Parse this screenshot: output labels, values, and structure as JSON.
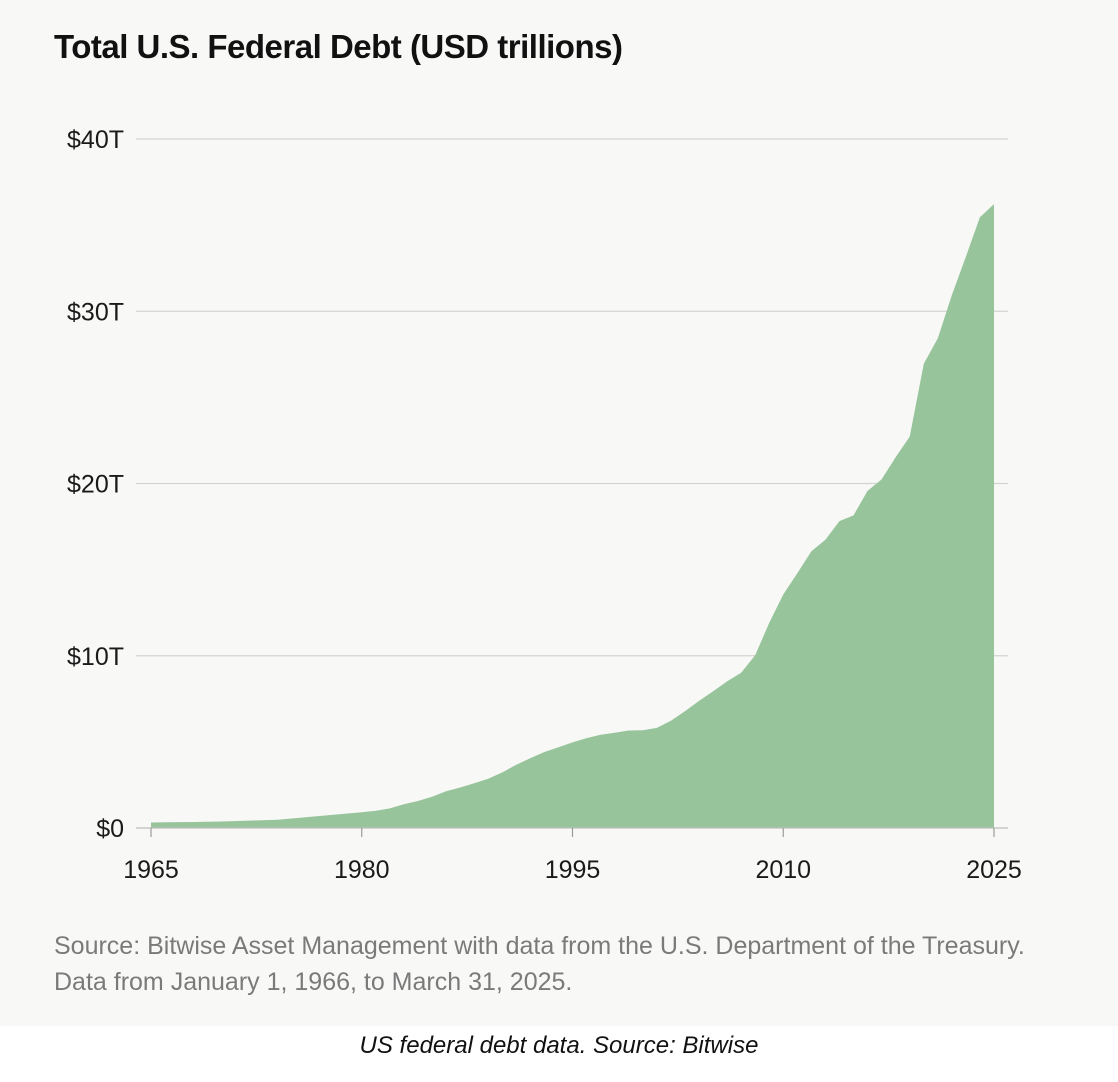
{
  "chart_data": {
    "type": "area",
    "title": "Total U.S. Federal Debt (USD trillions)",
    "x_ticks": [
      "1965",
      "1980",
      "1995",
      "2010",
      "2025"
    ],
    "y_ticks": [
      "$0",
      "$10T",
      "$20T",
      "$30T",
      "$40T"
    ],
    "xlim": [
      1965,
      2025
    ],
    "ylim": [
      0,
      40
    ],
    "y_tick_values": [
      0,
      10,
      20,
      30,
      40
    ],
    "x_tick_values": [
      1965,
      1980,
      1995,
      2010,
      2025
    ],
    "grid": "horizontal",
    "fill_color": "#98c49c",
    "series": [
      {
        "x": [
          1965,
          1966,
          1968,
          1970,
          1972,
          1974,
          1976,
          1978,
          1980,
          1981,
          1982,
          1983,
          1984,
          1985,
          1986,
          1987,
          1988,
          1989,
          1990,
          1991,
          1992,
          1993,
          1994,
          1995,
          1996,
          1997,
          1998,
          1999,
          2000,
          2001,
          2002,
          2003,
          2004,
          2005,
          2006,
          2007,
          2008,
          2009,
          2010,
          2011,
          2012,
          2013,
          2014,
          2015,
          2016,
          2017,
          2018,
          2019,
          2020,
          2021,
          2022,
          2023,
          2024,
          2025
        ],
        "y": [
          0.32,
          0.33,
          0.35,
          0.38,
          0.43,
          0.48,
          0.62,
          0.77,
          0.91,
          1.0,
          1.14,
          1.38,
          1.57,
          1.82,
          2.13,
          2.35,
          2.6,
          2.86,
          3.23,
          3.67,
          4.06,
          4.41,
          4.69,
          4.97,
          5.22,
          5.41,
          5.53,
          5.66,
          5.67,
          5.81,
          6.23,
          6.78,
          7.38,
          7.93,
          8.51,
          9.01,
          10.02,
          11.91,
          13.56,
          14.79,
          16.07,
          16.74,
          17.82,
          18.15,
          19.57,
          20.24,
          21.52,
          22.72,
          26.95,
          28.43,
          30.93,
          33.17,
          35.46,
          36.22
        ]
      }
    ]
  },
  "source_note": "Source: Bitwise Asset Management with data from the U.S. Department of the Treasury. Data from January 1, 1966, to March 31, 2025.",
  "caption": "US federal debt data. Source: Bitwise"
}
